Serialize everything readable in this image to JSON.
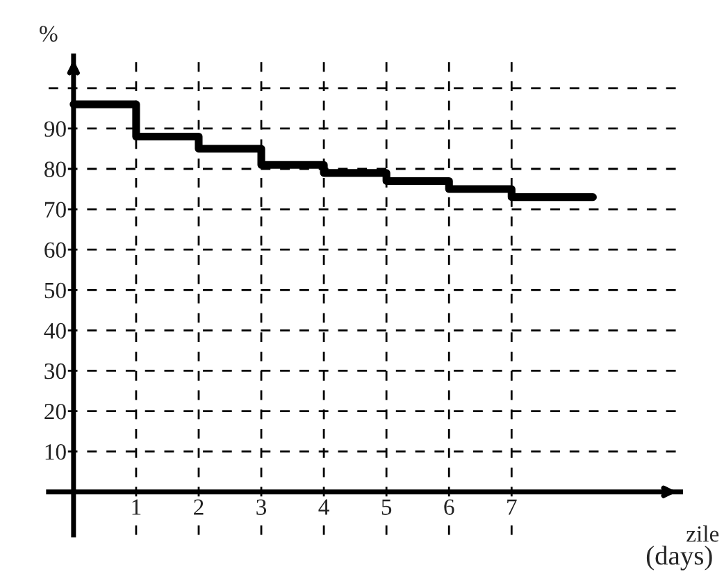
{
  "chart_data": {
    "type": "step",
    "xlabel": "zile",
    "ylabel": "%",
    "annotations": [
      "(days)"
    ],
    "x": [
      0,
      1,
      2,
      3,
      4,
      5,
      6,
      7,
      8.3
    ],
    "series": [
      {
        "color": "#000000",
        "values": [
          96,
          88,
          85,
          81,
          79,
          77,
          75,
          73,
          73
        ]
      }
    ],
    "xlim": [
      -0.4,
      9.7
    ],
    "ylim": [
      -10.7,
      108
    ],
    "xticks": [
      1,
      2,
      3,
      4,
      5,
      6,
      7
    ],
    "yticks": [
      10,
      20,
      30,
      40,
      50,
      60,
      70,
      80,
      90,
      {
        "value": 100,
        "label": null
      }
    ],
    "grid": true,
    "line_style": "solid",
    "marker": "none"
  }
}
